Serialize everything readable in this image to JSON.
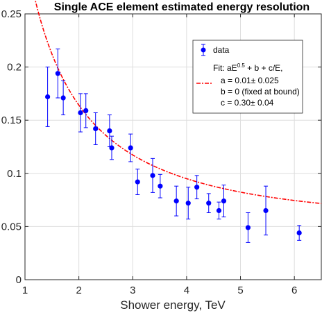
{
  "chart_data": {
    "type": "scatter",
    "title": "Single ACE element estimated energy resolution",
    "xlabel": "Shower energy, TeV",
    "ylabel": "",
    "xlim": [
      1,
      6.5
    ],
    "ylim": [
      0,
      0.25
    ],
    "xticks": [
      1,
      2,
      3,
      4,
      5,
      6
    ],
    "yticks": [
      0,
      0.05,
      0.1,
      0.15,
      0.2,
      0.25
    ],
    "xtick_labels": [
      "1",
      "2",
      "3",
      "4",
      "5",
      "6"
    ],
    "ytick_labels": [
      "0",
      "0.05",
      "0.1",
      "0.15",
      "0.2",
      "0.25"
    ],
    "grid": true,
    "legend_position": "top-right",
    "series": [
      {
        "name": "data",
        "kind": "errorbar",
        "color": "#0000ff",
        "points": [
          {
            "x": 1.42,
            "y": 0.172,
            "err": 0.028
          },
          {
            "x": 1.61,
            "y": 0.194,
            "err": 0.023
          },
          {
            "x": 1.71,
            "y": 0.171,
            "err": 0.016
          },
          {
            "x": 2.03,
            "y": 0.157,
            "err": 0.018
          },
          {
            "x": 2.13,
            "y": 0.159,
            "err": 0.016
          },
          {
            "x": 2.31,
            "y": 0.142,
            "err": 0.015
          },
          {
            "x": 2.57,
            "y": 0.14,
            "err": 0.015
          },
          {
            "x": 2.61,
            "y": 0.124,
            "err": 0.011
          },
          {
            "x": 2.96,
            "y": 0.124,
            "err": 0.013
          },
          {
            "x": 3.09,
            "y": 0.092,
            "err": 0.012
          },
          {
            "x": 3.37,
            "y": 0.098,
            "err": 0.016
          },
          {
            "x": 3.51,
            "y": 0.088,
            "err": 0.011
          },
          {
            "x": 3.81,
            "y": 0.074,
            "err": 0.014
          },
          {
            "x": 4.03,
            "y": 0.072,
            "err": 0.015
          },
          {
            "x": 4.19,
            "y": 0.087,
            "err": 0.011
          },
          {
            "x": 4.41,
            "y": 0.072,
            "err": 0.009
          },
          {
            "x": 4.6,
            "y": 0.065,
            "err": 0.008
          },
          {
            "x": 4.69,
            "y": 0.074,
            "err": 0.015
          },
          {
            "x": 5.14,
            "y": 0.049,
            "err": 0.014
          },
          {
            "x": 5.47,
            "y": 0.065,
            "err": 0.023
          },
          {
            "x": 6.09,
            "y": 0.044,
            "err": 0.007
          }
        ]
      },
      {
        "name": "Fit",
        "kind": "line",
        "color": "#ff0000",
        "dash": "6,2,2,2",
        "formula": {
          "a": 0.01,
          "b": 0,
          "c": 0.3
        },
        "x_from": 1.17,
        "x_to": 6.5
      }
    ],
    "legend": {
      "data_label": "data",
      "fit_line1_prefix": "Fit: aE",
      "fit_line1_exp": "0.5",
      "fit_line1_suffix": " + b + c/E,",
      "fit_line2": "a = 0.01± 0.025",
      "fit_line3": "b = 0 (fixed at bound)",
      "fit_line4": "c = 0.30± 0.04"
    }
  }
}
